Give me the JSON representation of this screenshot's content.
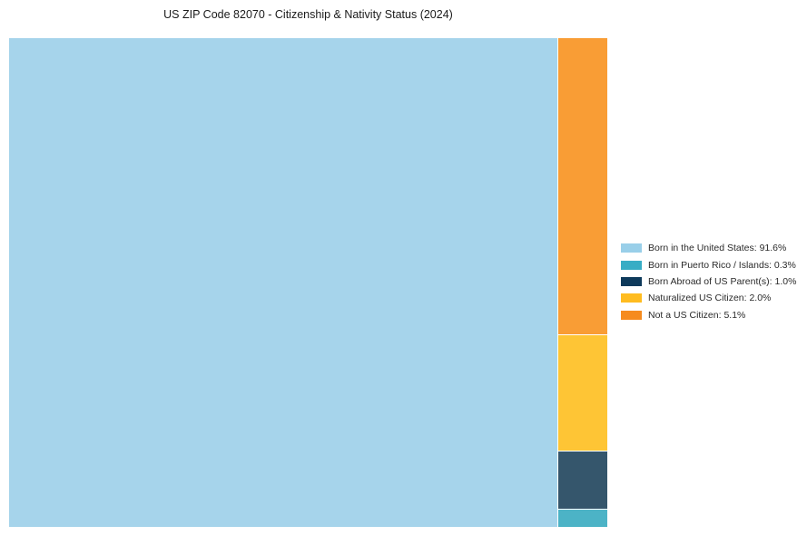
{
  "title": "US ZIP Code 82070 - Citizenship & Nativity Status (2024)",
  "chart_data": {
    "type": "treemap",
    "title": "US ZIP Code 82070 - Citizenship & Nativity Status (2024)",
    "unit": "%",
    "total": 100,
    "legend_position": "right-center",
    "layout_note": "single large block left (largest item), remaining items stacked top-to-bottom in descending order in a narrow right column",
    "items": [
      {
        "label": "Born in the United States",
        "value": 91.6,
        "block_color": "#A6D4EB",
        "legend_color": "#99CFE9"
      },
      {
        "label": "Born in Puerto Rico / Islands",
        "value": 0.3,
        "block_color": "#4CB3C6",
        "legend_color": "#38ADC5"
      },
      {
        "label": "Born Abroad of US Parent(s)",
        "value": 1.0,
        "block_color": "#35566C",
        "legend_color": "#0E3A5B"
      },
      {
        "label": "Naturalized US Citizen",
        "value": 2.0,
        "block_color": "#FEC535",
        "legend_color": "#FFBC20"
      },
      {
        "label": "Not a US Citizen",
        "value": 5.1,
        "block_color": "#F99D35",
        "legend_color": "#F68B1E"
      }
    ]
  }
}
